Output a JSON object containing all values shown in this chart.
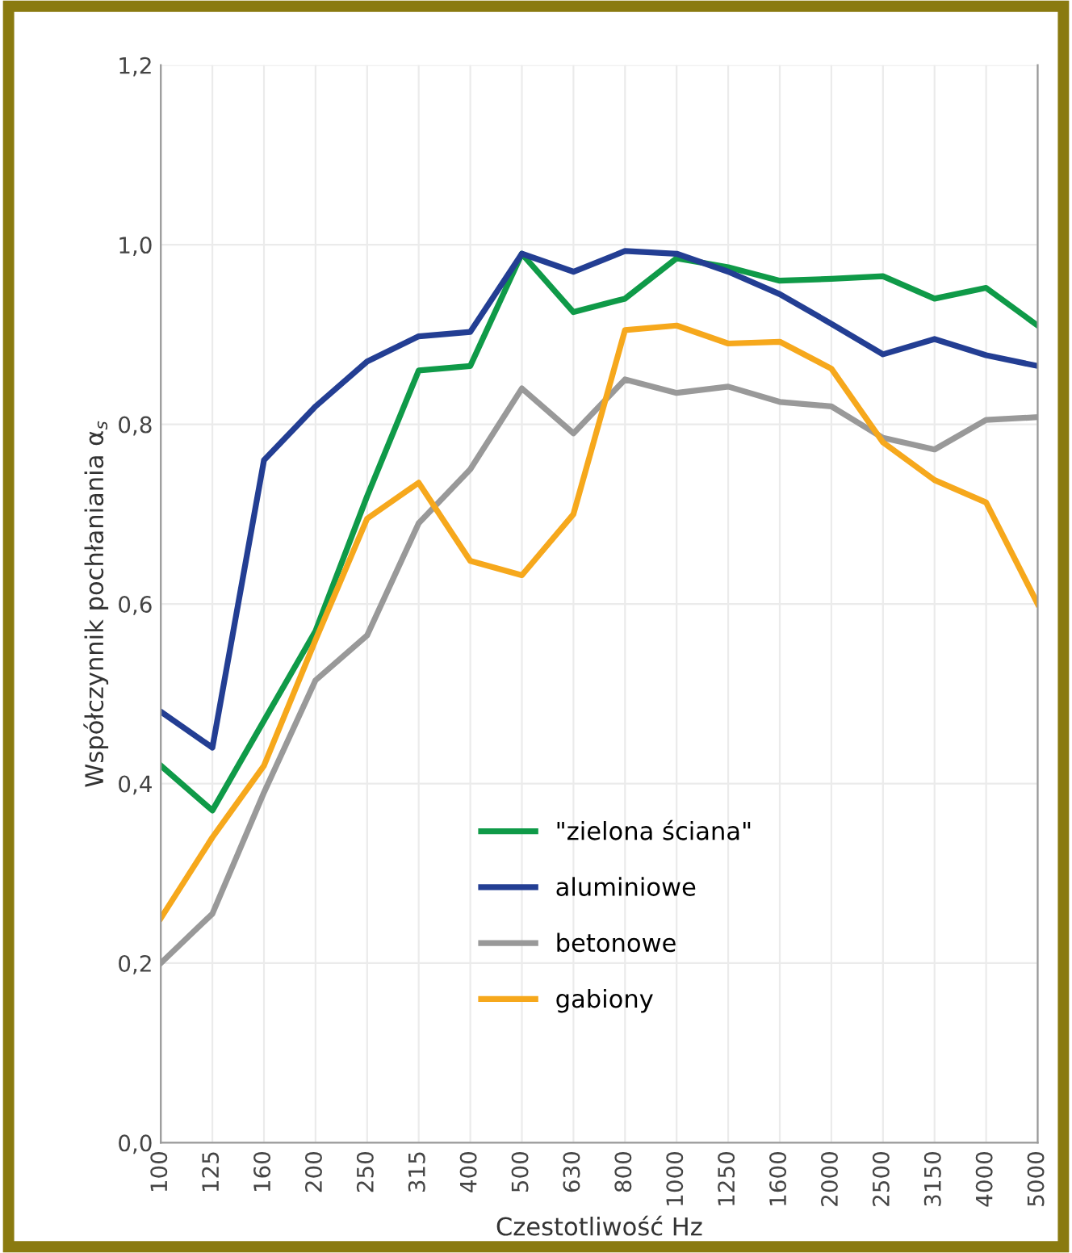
{
  "chart_data": {
    "type": "line",
    "xlabel": "Czestotliwość Hz",
    "ylabel": "Współczynnik pochłaniania α$_{s}$",
    "categories": [
      "100",
      "125",
      "160",
      "200",
      "250",
      "315",
      "400",
      "500",
      "630",
      "800",
      "1000",
      "1250",
      "1600",
      "2000",
      "2500",
      "3150",
      "4000",
      "5000"
    ],
    "series": [
      {
        "name": "\"zielona ściana\"",
        "color": "#0f9a48",
        "values": [
          0.42,
          0.37,
          0.47,
          0.57,
          0.72,
          0.86,
          0.865,
          0.99,
          0.925,
          0.94,
          0.985,
          0.975,
          0.96,
          0.962,
          0.965,
          0.94,
          0.952,
          0.91
        ]
      },
      {
        "name": "aluminiowe",
        "color": "#233e93",
        "values": [
          0.48,
          0.44,
          0.76,
          0.82,
          0.87,
          0.898,
          0.903,
          0.99,
          0.97,
          0.993,
          0.99,
          0.97,
          0.945,
          0.912,
          0.878,
          0.895,
          0.877,
          0.865
        ]
      },
      {
        "name": "betonowe",
        "color": "#999999",
        "values": [
          0.2,
          0.255,
          0.39,
          0.515,
          0.565,
          0.69,
          0.75,
          0.84,
          0.79,
          0.85,
          0.835,
          0.842,
          0.825,
          0.82,
          0.785,
          0.772,
          0.805,
          0.808
        ]
      },
      {
        "name": "gabiony",
        "color": "#f6a81c",
        "values": [
          0.25,
          0.34,
          0.42,
          0.56,
          0.695,
          0.735,
          0.648,
          0.632,
          0.7,
          0.905,
          0.91,
          0.89,
          0.892,
          0.862,
          0.78,
          0.738,
          0.713,
          0.6
        ]
      }
    ],
    "ylim": [
      0,
      1.2
    ],
    "yticks": [
      {
        "value": 0,
        "label": "0,0"
      },
      {
        "value": 0.2,
        "label": "0,2"
      },
      {
        "value": 0.4,
        "label": "0,4"
      },
      {
        "value": 0.6,
        "label": "0,6"
      },
      {
        "value": 0.8,
        "label": "0,8"
      },
      {
        "value": 1.0,
        "label": "1,0"
      },
      {
        "value": 1.2,
        "label": "1,2"
      }
    ],
    "grid": true,
    "legend": "bottom right",
    "marker": "none",
    "line_style": "solid"
  }
}
